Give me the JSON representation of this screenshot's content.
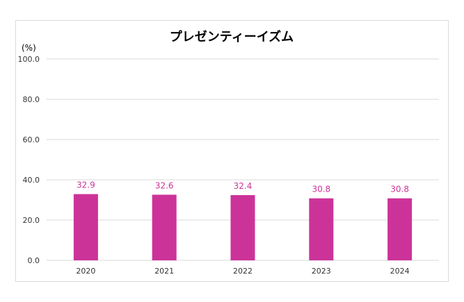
{
  "chart_data": {
    "type": "bar",
    "title": "プレゼンティーイズム",
    "unit_label": "(%)",
    "categories": [
      "2020",
      "2021",
      "2022",
      "2023",
      "2024"
    ],
    "values": [
      32.9,
      32.6,
      32.4,
      30.8,
      30.8
    ],
    "data_labels": [
      "32.9",
      "32.6",
      "32.4",
      "30.8",
      "30.8"
    ],
    "y_ticks": [
      "0.0",
      "20.0",
      "40.0",
      "60.0",
      "80.0",
      "100.0"
    ],
    "ylim": [
      0,
      100
    ],
    "grid": true,
    "legend": "none",
    "bar_color": "#cc3399",
    "label_color": "#cc3399",
    "grid_color": "#d9d9d9"
  }
}
